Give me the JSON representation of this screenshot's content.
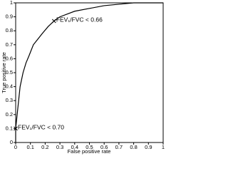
{
  "chart_data": {
    "type": "line",
    "x_label": "False positive rate",
    "y_label": "True positive rate",
    "x": [
      0,
      0,
      0.01,
      0.02,
      0.03,
      0.05,
      0.07,
      0.09,
      0.12,
      0.15,
      0.18,
      0.22,
      0.26,
      0.3,
      0.35,
      0.4,
      0.5,
      0.6,
      0.7,
      0.8,
      1
    ],
    "series": [
      {
        "color": "#000000",
        "values": [
          0,
          0.1,
          0.2,
          0.3,
          0.4,
          0.5,
          0.57,
          0.62,
          0.7,
          0.74,
          0.78,
          0.83,
          0.87,
          0.9,
          0.92,
          0.94,
          0.96,
          0.98,
          0.99,
          1,
          1
        ]
      }
    ],
    "annotations": [
      {
        "text": "FEV₁/FVC < 0.66",
        "x": 0.26,
        "y": 0.87
      },
      {
        "text": "FEV₁/FVC < 0.70",
        "x": 0,
        "y": 0.1
      }
    ],
    "xlim": [
      0,
      1
    ],
    "ylim": [
      0,
      1
    ],
    "xticks": [
      0,
      0.1,
      0.2,
      0.3,
      0.4,
      0.5,
      0.6,
      0.7,
      0.8,
      0.9,
      1
    ],
    "yticks": [
      0,
      0.1,
      0.2,
      0.3,
      0.4,
      0.5,
      0.6,
      0.7,
      0.8,
      0.9,
      1
    ],
    "grid": false
  }
}
